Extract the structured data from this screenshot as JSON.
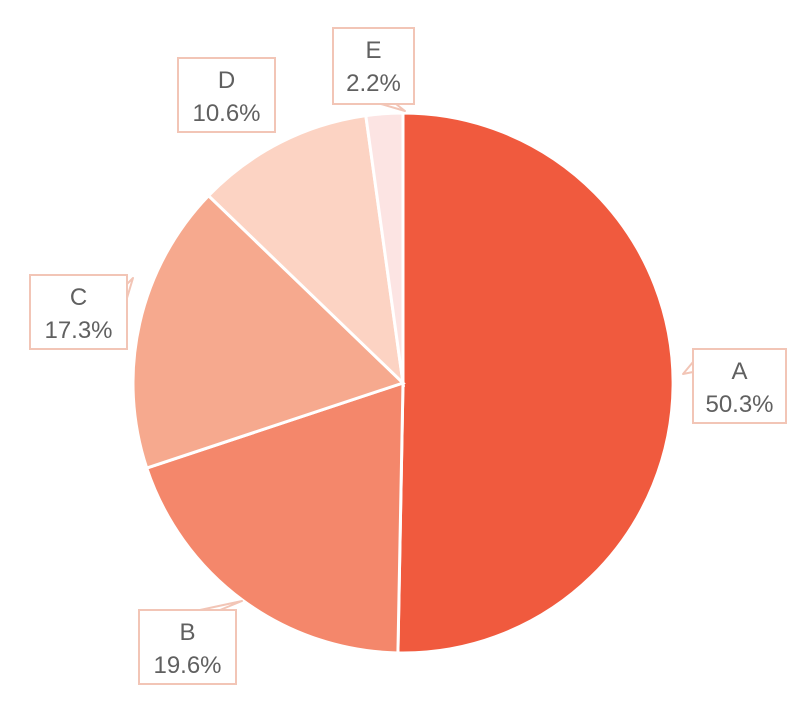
{
  "chart_data": {
    "type": "pie",
    "title": "",
    "slices": [
      {
        "label": "A",
        "value": 50.3,
        "display": "50.3%",
        "color": "#F05A3E"
      },
      {
        "label": "B",
        "value": 19.6,
        "display": "19.6%",
        "color": "#F4876B"
      },
      {
        "label": "C",
        "value": 17.3,
        "display": "17.3%",
        "color": "#F6A98E"
      },
      {
        "label": "D",
        "value": 10.6,
        "display": "10.6%",
        "color": "#FCD3C3"
      },
      {
        "label": "E",
        "value": 2.2,
        "display": "2.2%",
        "color": "#FCE4E3"
      }
    ],
    "start_angle": "12 o'clock",
    "direction": "clockwise",
    "legend": "none",
    "label_style": "callout",
    "callout_border_color": "#F2C5B6",
    "text_color": "#606060"
  }
}
